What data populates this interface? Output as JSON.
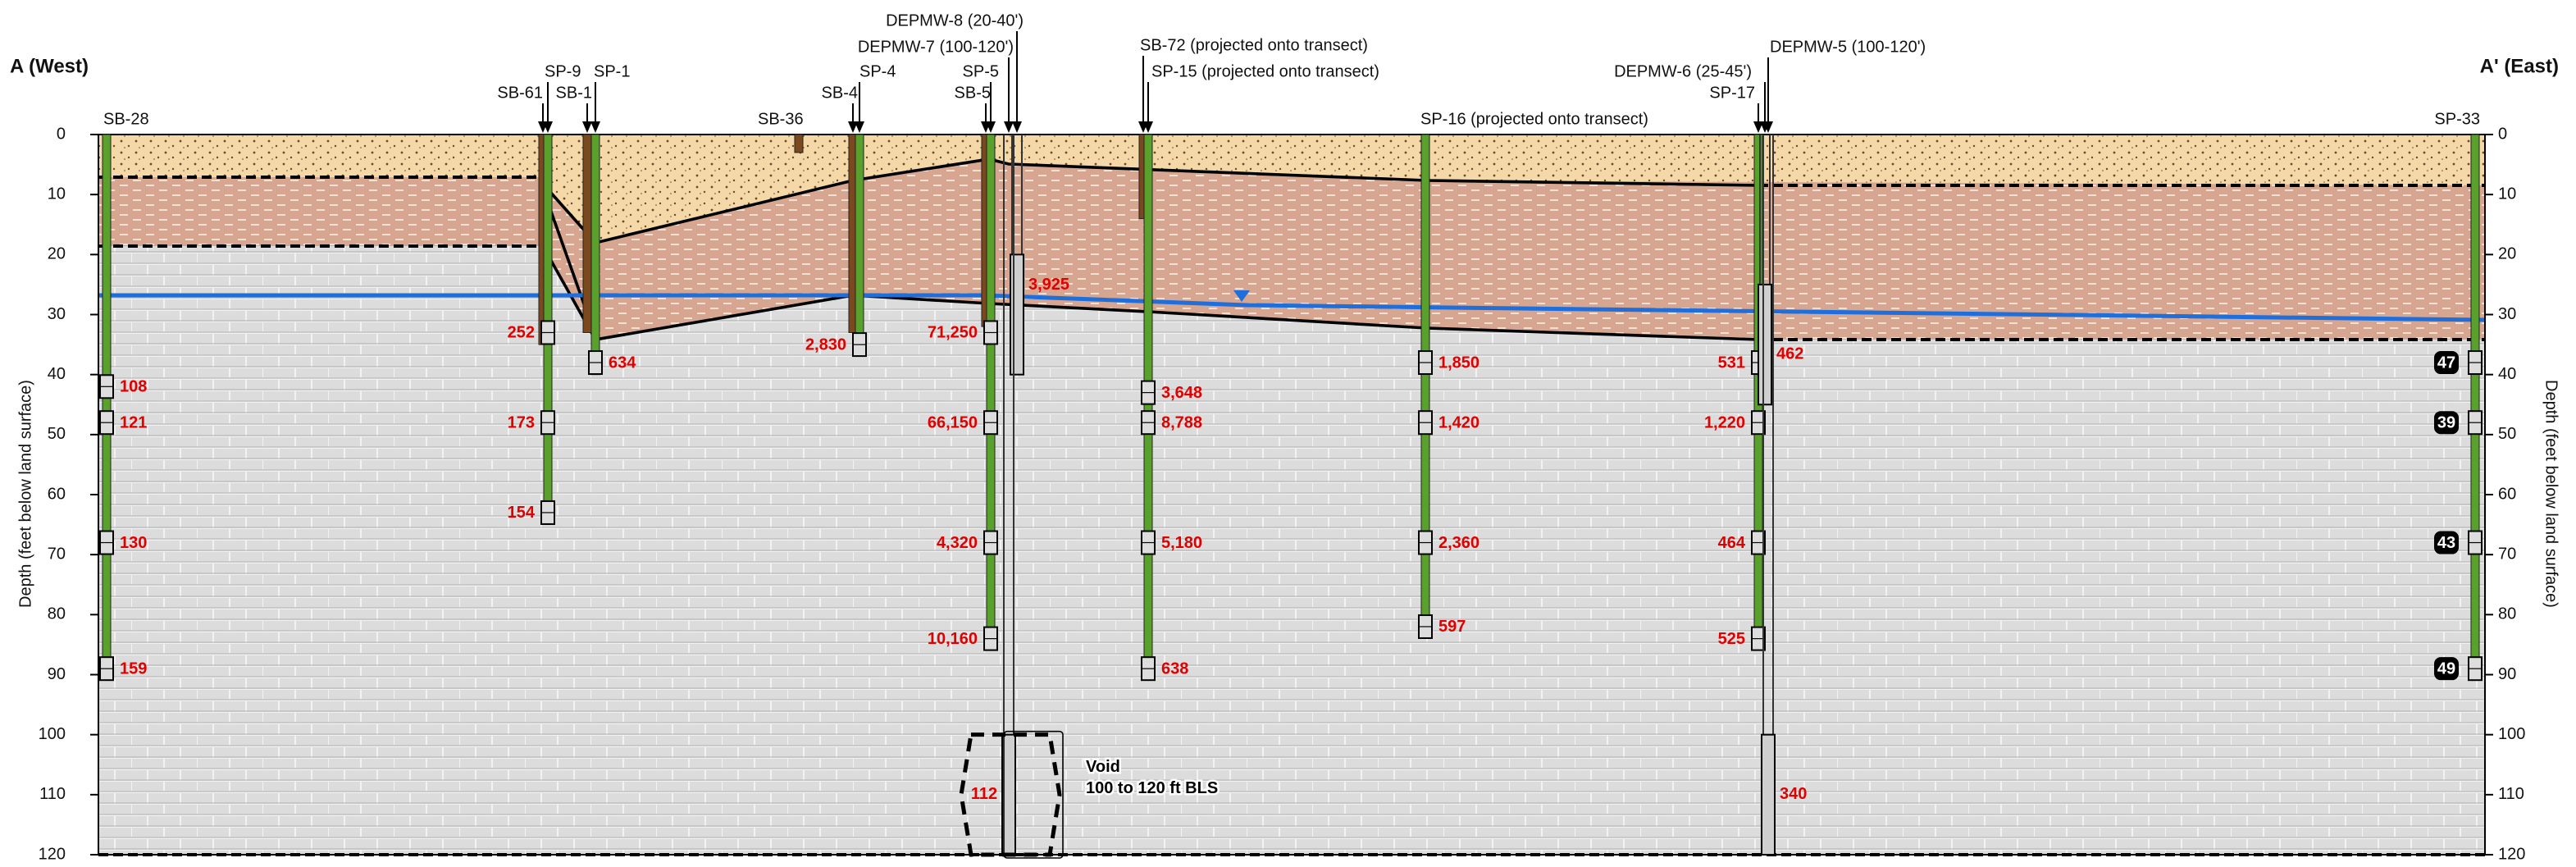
{
  "sides": {
    "west": "A (West)",
    "east": "A' (East)"
  },
  "axis": {
    "label": "Depth (feet below land surface)",
    "ylim": [
      0,
      120
    ],
    "yticks": [
      0,
      10,
      20,
      30,
      40,
      50,
      60,
      70,
      80,
      90,
      100,
      110,
      120
    ]
  },
  "borings": [
    {
      "name": "SB-28",
      "color": "#5aa02c",
      "bottom": 90,
      "samples": [
        {
          "depth": 42,
          "result": "108"
        },
        {
          "depth": 48,
          "result": "121"
        },
        {
          "depth": 68,
          "result": "130"
        },
        {
          "depth": 89,
          "result": "159"
        }
      ]
    },
    {
      "name": "SB-61",
      "color": "#7a4a1e",
      "bottom": 35,
      "samples": []
    },
    {
      "name": "SP-9",
      "color": "#5aa02c",
      "bottom": 64,
      "samples": [
        {
          "depth": 33,
          "result": "252"
        },
        {
          "depth": 48,
          "result": "173"
        },
        {
          "depth": 63,
          "result": "154"
        }
      ]
    },
    {
      "name": "SB-1",
      "color": "#7a4a1e",
      "bottom": 33,
      "samples": []
    },
    {
      "name": "SP-1",
      "color": "#5aa02c",
      "bottom": 40,
      "samples": [
        {
          "depth": 38,
          "result": "634"
        }
      ]
    },
    {
      "name": "SB-36",
      "color": "#7a4a1e",
      "bottom": 3,
      "samples": []
    },
    {
      "name": "SB-4",
      "color": "#7a4a1e",
      "bottom": 33,
      "samples": []
    },
    {
      "name": "SP-4",
      "color": "#5aa02c",
      "bottom": 36,
      "samples": [
        {
          "depth": 35,
          "result": "2,830"
        }
      ]
    },
    {
      "name": "SB-5",
      "color": "#7a4a1e",
      "bottom": 32,
      "samples": []
    },
    {
      "name": "SP-5",
      "color": "#5aa02c",
      "bottom": 85,
      "samples": [
        {
          "depth": 33,
          "result": "71,250"
        },
        {
          "depth": 48,
          "result": "66,150"
        },
        {
          "depth": 68,
          "result": "4,320"
        },
        {
          "depth": 84,
          "result": "10,160"
        }
      ]
    },
    {
      "name": "SB-72 (projected onto transect)",
      "color": "#7a4a1e",
      "bottom": 14,
      "samples": []
    },
    {
      "name": "SP-15 (projected onto transect)",
      "color": "#5aa02c",
      "bottom": 90,
      "samples": [
        {
          "depth": 43,
          "result": "3,648"
        },
        {
          "depth": 48,
          "result": "8,788"
        },
        {
          "depth": 68,
          "result": "5,180"
        },
        {
          "depth": 89,
          "result": "638"
        }
      ]
    },
    {
      "name": "SP-16 (projected onto transect)",
      "color": "#5aa02c",
      "bottom": 83,
      "samples": [
        {
          "depth": 38,
          "result": "1,850"
        },
        {
          "depth": 48,
          "result": "1,420"
        },
        {
          "depth": 68,
          "result": "2,360"
        },
        {
          "depth": 82,
          "result": "597"
        }
      ]
    },
    {
      "name": "SP-17",
      "color": "#5aa02c",
      "bottom": 85,
      "samples": [
        {
          "depth": 38,
          "result": "531"
        },
        {
          "depth": 48,
          "result": "1,220"
        },
        {
          "depth": 68,
          "result": "464"
        },
        {
          "depth": 84,
          "result": "525"
        }
      ]
    },
    {
      "name": "SP-33",
      "color": "#5aa02c",
      "bottom": 90,
      "boxed": true,
      "samples": [
        {
          "depth": 38,
          "result": "47"
        },
        {
          "depth": 48,
          "result": "39"
        },
        {
          "depth": 68,
          "result": "43"
        },
        {
          "depth": 89,
          "result": "49"
        }
      ]
    }
  ],
  "wells": [
    {
      "name": "DEPMW-8 (20-40')",
      "screen_top": 20,
      "screen_bottom": 40,
      "result": "3,925"
    },
    {
      "name": "DEPMW-7 (100-120')",
      "screen_top": 100,
      "screen_bottom": 120
    },
    {
      "name": "DEPMW-6 (25-45')",
      "screen_top": 25,
      "screen_bottom": 45,
      "result": "462"
    },
    {
      "name": "DEPMW-5 (100-120')",
      "screen_top": 100,
      "screen_bottom": 120,
      "result": "340"
    }
  ],
  "void": {
    "label": "Void",
    "range": "100 to 120 ft BLS",
    "result": "112",
    "top": 100,
    "bottom": 120
  }
}
